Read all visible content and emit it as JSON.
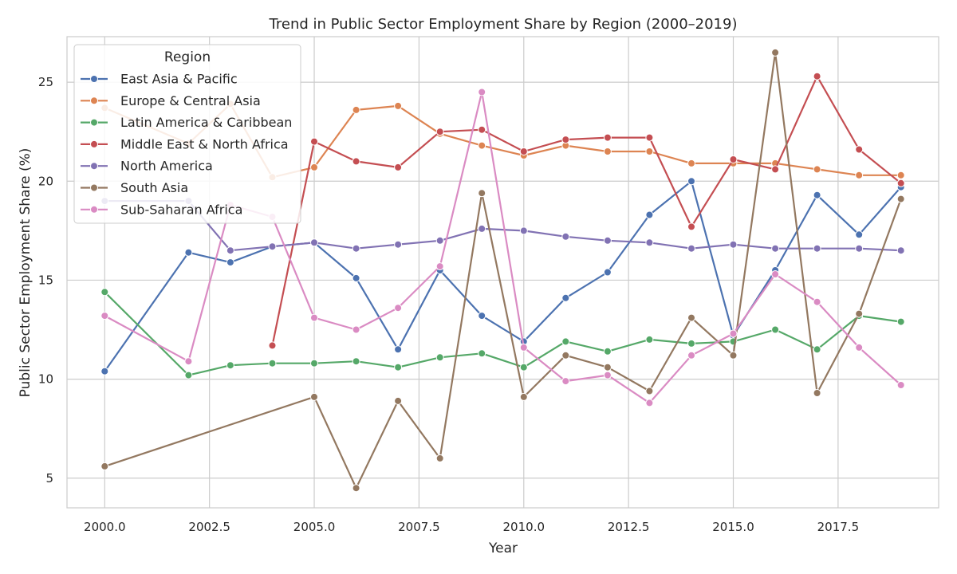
{
  "chart_data": {
    "type": "line",
    "title": "Trend in Public Sector Employment Share by Region (2000–2019)",
    "xlabel": "Year",
    "ylabel": "Public Sector Employment Share (%)",
    "xlim": [
      1999.1,
      2019.9
    ],
    "ylim": [
      3.5,
      27.3
    ],
    "xticks": [
      2000,
      2002.5,
      2005,
      2007.5,
      2010,
      2012.5,
      2015,
      2017.5
    ],
    "xtick_labels": [
      "2000.0",
      "2002.5",
      "2005.0",
      "2007.5",
      "2010.0",
      "2012.5",
      "2015.0",
      "2017.5"
    ],
    "yticks": [
      5,
      10,
      15,
      20,
      25
    ],
    "ytick_labels": [
      "5",
      "10",
      "15",
      "20",
      "25"
    ],
    "grid": true,
    "legend": {
      "title": "Region",
      "position": "top-left"
    },
    "series": [
      {
        "name": "East Asia & Pacific",
        "color": "#4c72b0",
        "points": [
          [
            2000,
            10.4
          ],
          [
            2002,
            16.4
          ],
          [
            2003,
            15.9
          ],
          [
            2004,
            16.7
          ],
          [
            2005,
            16.9
          ],
          [
            2006,
            15.1
          ],
          [
            2007,
            11.5
          ],
          [
            2008,
            15.5
          ],
          [
            2009,
            13.2
          ],
          [
            2010,
            11.9
          ],
          [
            2011,
            14.1
          ],
          [
            2012,
            15.4
          ],
          [
            2013,
            18.3
          ],
          [
            2014,
            20.0
          ],
          [
            2015,
            12.2
          ],
          [
            2016,
            15.5
          ],
          [
            2017,
            19.3
          ],
          [
            2018,
            17.3
          ],
          [
            2019,
            19.7
          ]
        ]
      },
      {
        "name": "Europe & Central Asia",
        "color": "#dd8452",
        "points": [
          [
            2000,
            23.7
          ],
          [
            2002,
            21.9
          ],
          [
            2003,
            23.9
          ],
          [
            2004,
            20.2
          ],
          [
            2005,
            20.7
          ],
          [
            2006,
            23.6
          ],
          [
            2007,
            23.8
          ],
          [
            2008,
            22.4
          ],
          [
            2009,
            21.8
          ],
          [
            2010,
            21.3
          ],
          [
            2011,
            21.8
          ],
          [
            2012,
            21.5
          ],
          [
            2013,
            21.5
          ],
          [
            2014,
            20.9
          ],
          [
            2015,
            20.9
          ],
          [
            2016,
            20.9
          ],
          [
            2017,
            20.6
          ],
          [
            2018,
            20.3
          ],
          [
            2019,
            20.3
          ]
        ]
      },
      {
        "name": "Latin America & Caribbean",
        "color": "#55a868",
        "points": [
          [
            2000,
            14.4
          ],
          [
            2002,
            10.2
          ],
          [
            2003,
            10.7
          ],
          [
            2004,
            10.8
          ],
          [
            2005,
            10.8
          ],
          [
            2006,
            10.9
          ],
          [
            2007,
            10.6
          ],
          [
            2008,
            11.1
          ],
          [
            2009,
            11.3
          ],
          [
            2010,
            10.6
          ],
          [
            2011,
            11.9
          ],
          [
            2012,
            11.4
          ],
          [
            2013,
            12.0
          ],
          [
            2014,
            11.8
          ],
          [
            2015,
            11.9
          ],
          [
            2016,
            12.5
          ],
          [
            2017,
            11.5
          ],
          [
            2018,
            13.2
          ],
          [
            2019,
            12.9
          ]
        ]
      },
      {
        "name": "Middle East & North Africa",
        "color": "#c44e52",
        "points": [
          [
            2004,
            11.7
          ],
          [
            2005,
            22.0
          ],
          [
            2006,
            21.0
          ],
          [
            2007,
            20.7
          ],
          [
            2008,
            22.5
          ],
          [
            2009,
            22.6
          ],
          [
            2010,
            21.5
          ],
          [
            2011,
            22.1
          ],
          [
            2012,
            22.2
          ],
          [
            2013,
            22.2
          ],
          [
            2014,
            17.7
          ],
          [
            2015,
            21.1
          ],
          [
            2016,
            20.6
          ],
          [
            2017,
            25.3
          ],
          [
            2018,
            21.6
          ],
          [
            2019,
            19.9
          ]
        ]
      },
      {
        "name": "North America",
        "color": "#8172b3",
        "points": [
          [
            2000,
            19.0
          ],
          [
            2002,
            19.0
          ],
          [
            2003,
            16.5
          ],
          [
            2004,
            16.7
          ],
          [
            2005,
            16.9
          ],
          [
            2006,
            16.6
          ],
          [
            2007,
            16.8
          ],
          [
            2008,
            17.0
          ],
          [
            2009,
            17.6
          ],
          [
            2010,
            17.5
          ],
          [
            2011,
            17.2
          ],
          [
            2012,
            17.0
          ],
          [
            2013,
            16.9
          ],
          [
            2014,
            16.6
          ],
          [
            2015,
            16.8
          ],
          [
            2016,
            16.6
          ],
          [
            2017,
            16.6
          ],
          [
            2018,
            16.6
          ],
          [
            2019,
            16.5
          ]
        ]
      },
      {
        "name": "South Asia",
        "color": "#937860",
        "points": [
          [
            2000,
            5.6
          ],
          [
            2005,
            9.1
          ],
          [
            2006,
            4.5
          ],
          [
            2007,
            8.9
          ],
          [
            2008,
            6.0
          ],
          [
            2009,
            19.4
          ],
          [
            2010,
            9.1
          ],
          [
            2011,
            11.2
          ],
          [
            2012,
            10.6
          ],
          [
            2013,
            9.4
          ],
          [
            2014,
            13.1
          ],
          [
            2015,
            11.2
          ],
          [
            2016,
            26.5
          ],
          [
            2017,
            9.3
          ],
          [
            2018,
            13.3
          ],
          [
            2019,
            19.1
          ]
        ]
      },
      {
        "name": "Sub-Saharan Africa",
        "color": "#da8bc3",
        "points": [
          [
            2000,
            13.2
          ],
          [
            2002,
            10.9
          ],
          [
            2003,
            18.8
          ],
          [
            2004,
            18.2
          ],
          [
            2005,
            13.1
          ],
          [
            2006,
            12.5
          ],
          [
            2007,
            13.6
          ],
          [
            2008,
            15.7
          ],
          [
            2009,
            24.5
          ],
          [
            2010,
            11.6
          ],
          [
            2011,
            9.9
          ],
          [
            2012,
            10.2
          ],
          [
            2013,
            8.8
          ],
          [
            2014,
            11.2
          ],
          [
            2015,
            12.3
          ],
          [
            2016,
            15.3
          ],
          [
            2017,
            13.9
          ],
          [
            2018,
            11.6
          ],
          [
            2019,
            9.7
          ]
        ]
      }
    ]
  }
}
